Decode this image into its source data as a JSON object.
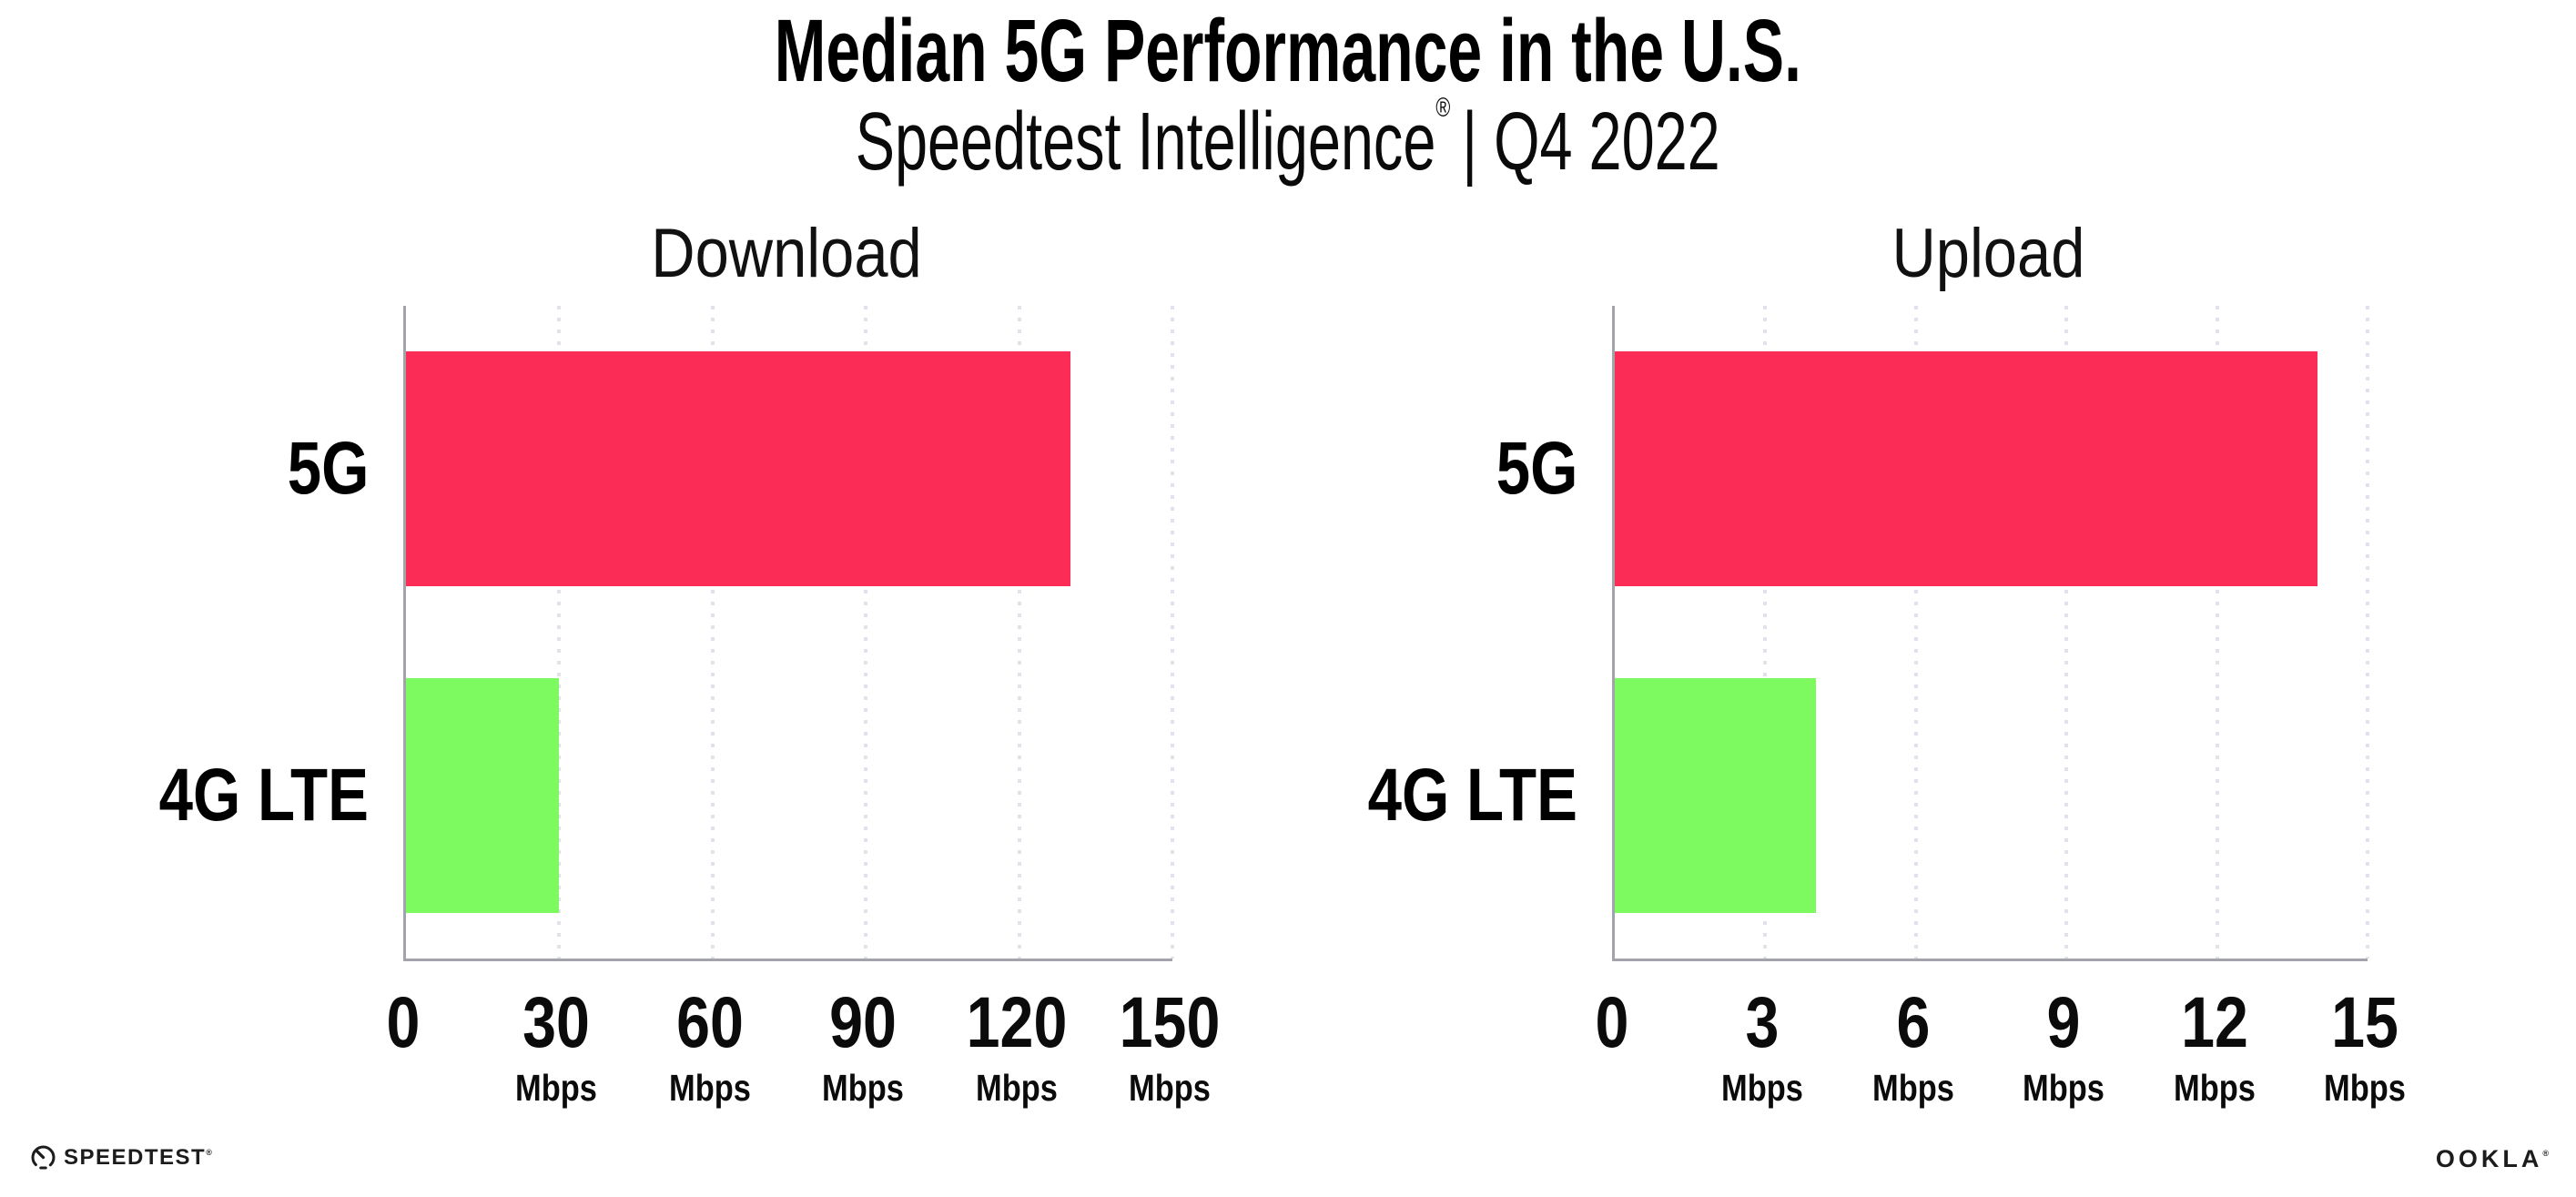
{
  "header": {
    "title": "Median 5G Performance in the U.S.",
    "subtitle": {
      "product": "Speedtest Intelligence",
      "trademark": "®",
      "period": "| Q4 2022"
    }
  },
  "colors": {
    "bar_5g": "#FB2C55",
    "bar_4g_lte": "#7EFA61",
    "axis": "#A3A3AB",
    "gridline": "#E2E2ED",
    "text": "#000000"
  },
  "chart_data": [
    {
      "type": "bar",
      "orientation": "horizontal",
      "title": "Download",
      "categories": [
        "5G",
        "4G LTE"
      ],
      "values": [
        130,
        30
      ],
      "unit": "Mbps",
      "xlim": [
        0,
        150
      ],
      "xticks": [
        0,
        30,
        60,
        90,
        120,
        150
      ],
      "tick_unit_label": "Mbps",
      "series_colors": [
        "#FB2C55",
        "#7EFA61"
      ],
      "grid": "dotted-vertical",
      "legend": "none"
    },
    {
      "type": "bar",
      "orientation": "horizontal",
      "title": "Upload",
      "categories": [
        "5G",
        "4G LTE"
      ],
      "values": [
        14,
        4
      ],
      "unit": "Mbps",
      "xlim": [
        0,
        15
      ],
      "xticks": [
        0,
        3,
        6,
        9,
        12,
        15
      ],
      "tick_unit_label": "Mbps",
      "series_colors": [
        "#FB2C55",
        "#7EFA61"
      ],
      "grid": "dotted-vertical",
      "legend": "none"
    }
  ],
  "footer": {
    "speedtest_logo_text": "SPEEDTEST",
    "speedtest_trademark": "®",
    "ookla_logo_text": "OOKLA",
    "ookla_trademark": "®"
  }
}
